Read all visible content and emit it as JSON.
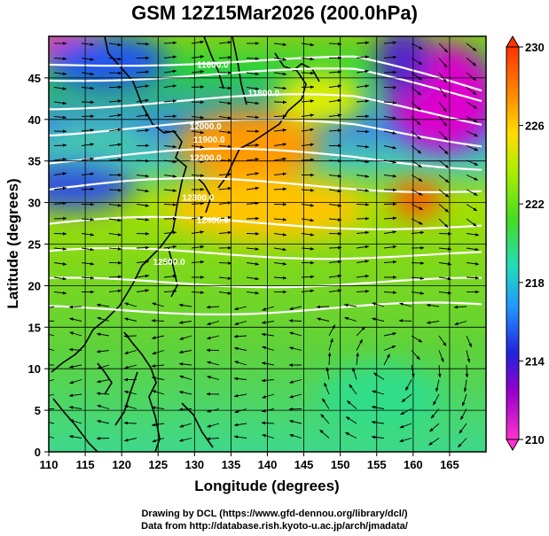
{
  "title": "GSM 12Z15Mar2026 (200.0hPa)",
  "credit_drawing": "Drawing by DCL (https://www.gfd-dennou.org/library/dcl/)",
  "credit_data": "Data from http://database.rish.kyoto-u.ac.jp/arch/jmadata/",
  "chart_data": {
    "type": "heatmap",
    "xlabel": "Longitude (degrees)",
    "ylabel": "Latitude  (degrees)",
    "xlim": [
      110,
      170
    ],
    "ylim": [
      0,
      50
    ],
    "x_ticks": [
      110,
      115,
      120,
      125,
      130,
      135,
      140,
      145,
      150,
      155,
      160,
      165
    ],
    "y_ticks": [
      0,
      5,
      10,
      15,
      20,
      25,
      30,
      35,
      40,
      45
    ],
    "grid": true,
    "colorbar": {
      "range": [
        210,
        230
      ],
      "ticks": [
        210,
        214,
        218,
        222,
        226,
        230
      ],
      "position": "right"
    },
    "contour_labels": [
      {
        "lon": 132.5,
        "lat": 46.2,
        "text": "11600.0"
      },
      {
        "lon": 139.5,
        "lat": 42.8,
        "text": "11800.0"
      },
      {
        "lon": 131.5,
        "lat": 38.8,
        "text": "12000.0"
      },
      {
        "lon": 132.0,
        "lat": 37.2,
        "text": "11900.0"
      },
      {
        "lon": 131.5,
        "lat": 35.0,
        "text": "12200.0"
      },
      {
        "lon": 130.5,
        "lat": 30.2,
        "text": "12300.0"
      },
      {
        "lon": 132.5,
        "lat": 27.5,
        "text": "12400.0"
      },
      {
        "lon": 126.5,
        "lat": 22.5,
        "text": "12500.0"
      }
    ]
  }
}
